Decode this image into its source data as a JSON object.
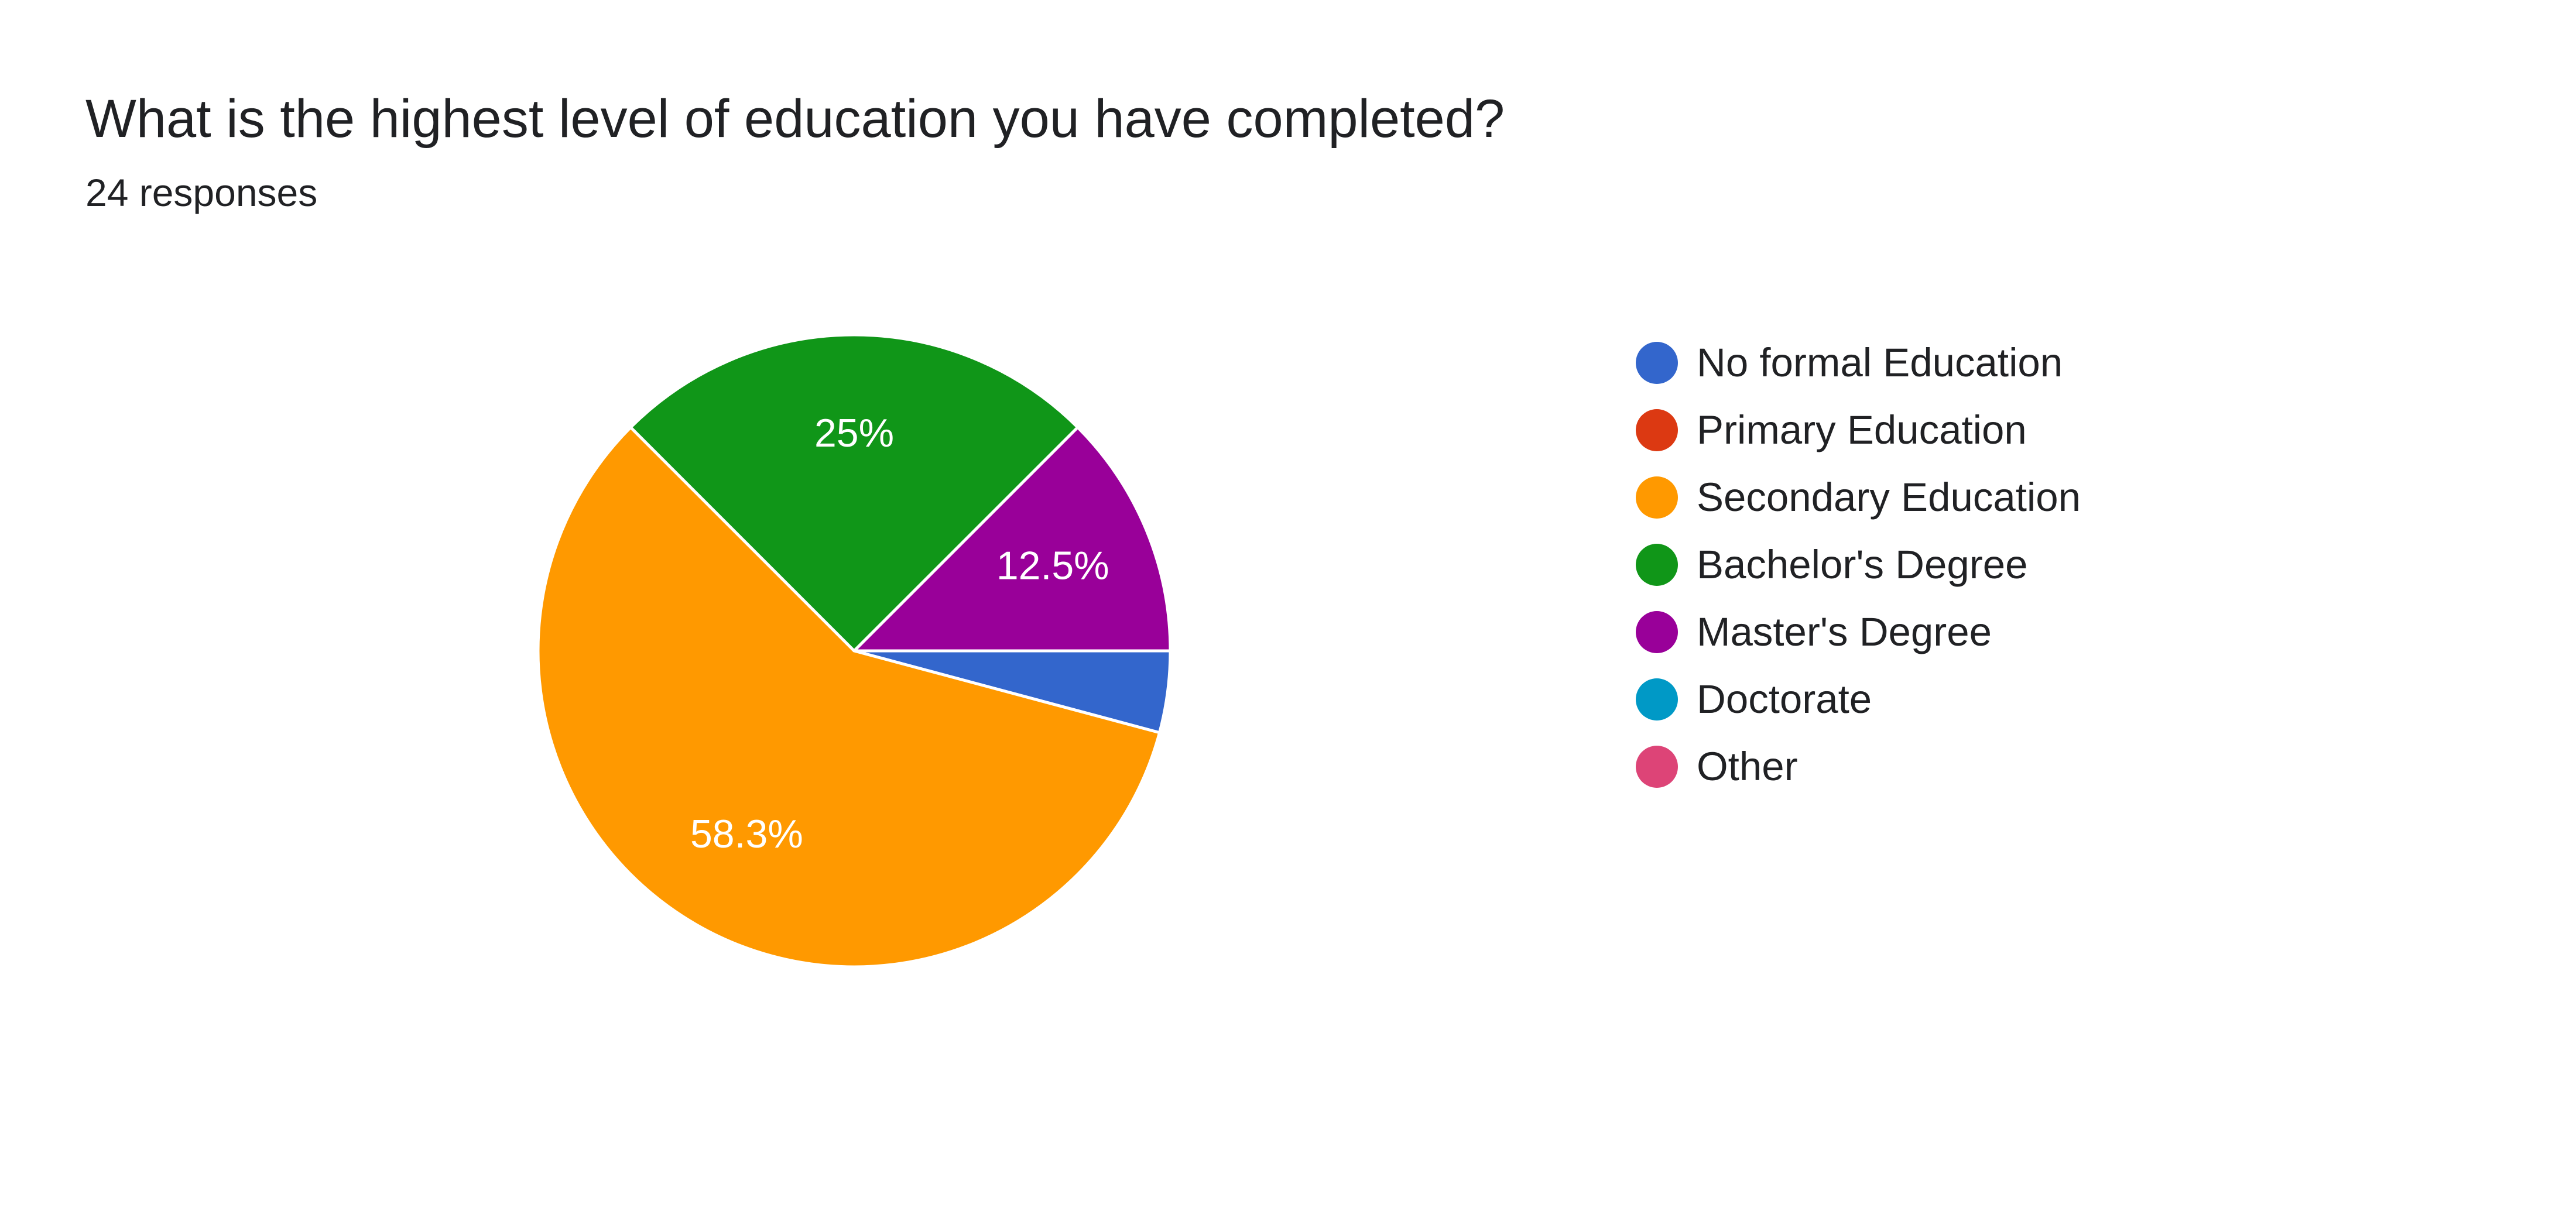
{
  "chart_data": {
    "type": "pie",
    "title": "What is the highest level of education you have completed?",
    "subtitle": "24 responses",
    "legend_position": "right",
    "slices": [
      {
        "name": "No formal Education",
        "value": 1,
        "label": "",
        "color": "#3366cc"
      },
      {
        "name": "Primary Education",
        "value": 0,
        "label": "",
        "color": "#dc3912"
      },
      {
        "name": "Secondary Education",
        "value": 14,
        "label": "58.3%",
        "color": "#ff9900"
      },
      {
        "name": "Bachelor's Degree",
        "value": 6,
        "label": "25%",
        "color": "#109618"
      },
      {
        "name": "Master's Degree",
        "value": 3,
        "label": "12.5%",
        "color": "#990099"
      },
      {
        "name": "Doctorate",
        "value": 0,
        "label": "",
        "color": "#0099c6"
      },
      {
        "name": "Other",
        "value": 0,
        "label": "",
        "color": "#dd4477"
      }
    ]
  }
}
